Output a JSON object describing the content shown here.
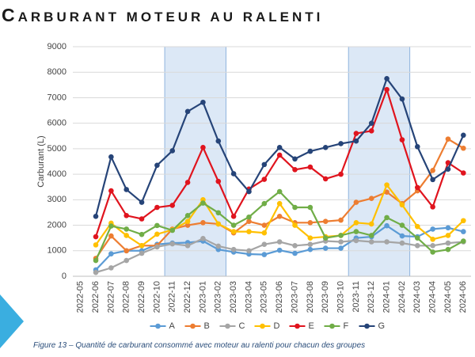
{
  "chart_data": {
    "type": "line",
    "title": "CARBURANT MOTEUR AU RALENTI",
    "caption": "Figure 13 – Quantité de carburant consommé avec moteur au ralenti pour chacun des groupes",
    "y_label": "Carburant (L)",
    "categories": [
      "2022-05",
      "2022-06",
      "2022-07",
      "2022-08",
      "2022-09",
      "2022-10",
      "2022-11",
      "2022-12",
      "2023-01",
      "2023-02",
      "2023-03",
      "2023-04",
      "2023-05",
      "2023-06",
      "2023-07",
      "2023-08",
      "2023-09",
      "2023-10",
      "2023-11",
      "2023-12",
      "2024-01",
      "2024-02",
      "2024-03",
      "2024-04",
      "2024-05",
      "2024-06"
    ],
    "highlights": [
      [
        "2022-11",
        "2023-02"
      ],
      [
        "2023-11",
        "2024-02"
      ]
    ],
    "ylim": [
      0,
      9000
    ],
    "yticks": [
      0,
      1000,
      2000,
      3000,
      4000,
      5000,
      6000,
      7000,
      8000,
      9000
    ],
    "grid": true,
    "legend": "bottom",
    "series": [
      {
        "name": "A",
        "color": "#5b9bd5",
        "values": [
          null,
          250,
          880,
          1000,
          1000,
          1250,
          1300,
          1320,
          1380,
          1050,
          950,
          870,
          850,
          1020,
          900,
          1050,
          1100,
          1100,
          1500,
          1550,
          1980,
          1580,
          1550,
          1850,
          1900,
          1750
        ]
      },
      {
        "name": "B",
        "color": "#ed7d31",
        "values": [
          null,
          700,
          1580,
          1000,
          1200,
          1200,
          1850,
          2000,
          2100,
          2050,
          1700,
          2150,
          2000,
          2350,
          2100,
          2100,
          2150,
          2200,
          2900,
          3050,
          3300,
          2850,
          3350,
          4150,
          5380,
          5020
        ]
      },
      {
        "name": "C",
        "color": "#a5a5a5",
        "values": [
          null,
          150,
          330,
          620,
          900,
          1150,
          1270,
          1200,
          1480,
          1180,
          1050,
          1000,
          1250,
          1350,
          1200,
          1250,
          1380,
          1350,
          1400,
          1350,
          1350,
          1300,
          1200,
          1200,
          1300,
          1350
        ]
      },
      {
        "name": "D",
        "color": "#ffc000",
        "values": [
          null,
          1230,
          2080,
          1600,
          1200,
          1650,
          1820,
          2150,
          3000,
          2050,
          1750,
          1750,
          1700,
          2850,
          2000,
          1500,
          1550,
          1600,
          2100,
          2050,
          3580,
          2800,
          1950,
          1450,
          1600,
          2180
        ]
      },
      {
        "name": "E",
        "color": "#e0141e",
        "values": [
          null,
          1550,
          3350,
          2380,
          2250,
          2700,
          2780,
          3680,
          5050,
          3720,
          2350,
          3420,
          3800,
          4750,
          4180,
          4280,
          3820,
          4000,
          5600,
          5700,
          7320,
          5350,
          3480,
          2720,
          4450,
          4050
        ]
      },
      {
        "name": "F",
        "color": "#70ad47",
        "values": [
          null,
          620,
          1970,
          1850,
          1640,
          1990,
          1800,
          2380,
          2870,
          2490,
          2000,
          2320,
          2850,
          3320,
          2700,
          2700,
          1500,
          1600,
          1750,
          1600,
          2300,
          2000,
          1500,
          950,
          1050,
          1380
        ]
      },
      {
        "name": "G",
        "color": "#264478",
        "values": [
          null,
          2350,
          4680,
          3400,
          2900,
          4350,
          4920,
          6460,
          6820,
          5300,
          4020,
          3320,
          4380,
          5050,
          4600,
          4900,
          5050,
          5200,
          5300,
          6000,
          7750,
          6950,
          5080,
          3790,
          4200,
          5530
        ]
      }
    ]
  }
}
